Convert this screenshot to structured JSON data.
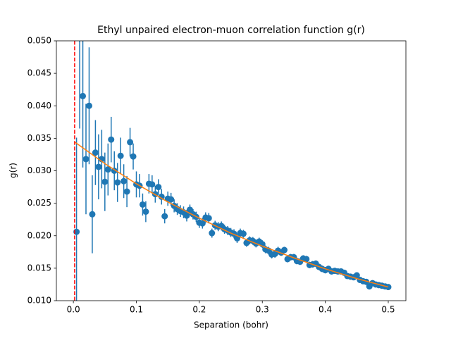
{
  "chart_data": {
    "type": "errorbar",
    "title": "Ethyl unpaired electron-muon correlation function g(r)",
    "x_label": "Separation (bohr)",
    "y_label": "g(r)",
    "xlim": [
      -0.027,
      0.528
    ],
    "ylim": [
      0.01,
      0.05
    ],
    "xticks": [
      {
        "value": 0,
        "label": "0.0"
      },
      {
        "value": 0.1,
        "label": "0.1"
      },
      {
        "value": 0.2,
        "label": "0.2"
      },
      {
        "value": 0.3,
        "label": "0.3"
      },
      {
        "value": 0.4,
        "label": "0.4"
      },
      {
        "value": 0.5,
        "label": "0.5"
      }
    ],
    "yticks": [
      {
        "value": 0.01,
        "label": "0.010"
      },
      {
        "value": 0.015,
        "label": "0.015"
      },
      {
        "value": 0.02,
        "label": "0.020"
      },
      {
        "value": 0.025,
        "label": "0.025"
      },
      {
        "value": 0.03,
        "label": "0.030"
      },
      {
        "value": 0.035,
        "label": "0.035"
      },
      {
        "value": 0.04,
        "label": "0.040"
      },
      {
        "value": 0.045,
        "label": "0.045"
      },
      {
        "value": 0.05,
        "label": "0.050"
      }
    ],
    "vline": {
      "x": 0.002,
      "color": "#ff0000"
    },
    "series": [
      {
        "kind": "errorbar",
        "color": "#1f77b4",
        "x": [
          0.005,
          0.01,
          0.015,
          0.02,
          0.025,
          0.03,
          0.035,
          0.04,
          0.045,
          0.05,
          0.055,
          0.06,
          0.065,
          0.07,
          0.075,
          0.08,
          0.085,
          0.09,
          0.095,
          0.1,
          0.105,
          0.11,
          0.115,
          0.12,
          0.125,
          0.13,
          0.135,
          0.14,
          0.145,
          0.15,
          0.155,
          0.16,
          0.165,
          0.17,
          0.175,
          0.18,
          0.185,
          0.19,
          0.195,
          0.2,
          0.205,
          0.21,
          0.215,
          0.22,
          0.225,
          0.23,
          0.235,
          0.24,
          0.245,
          0.25,
          0.255,
          0.26,
          0.265,
          0.27,
          0.275,
          0.28,
          0.285,
          0.29,
          0.295,
          0.3,
          0.305,
          0.31,
          0.315,
          0.32,
          0.325,
          0.33,
          0.335,
          0.34,
          0.345,
          0.35,
          0.355,
          0.36,
          0.365,
          0.37,
          0.375,
          0.38,
          0.385,
          0.39,
          0.395,
          0.4,
          0.405,
          0.41,
          0.415,
          0.42,
          0.425,
          0.43,
          0.435,
          0.44,
          0.445,
          0.45,
          0.455,
          0.46,
          0.465,
          0.47,
          0.475,
          0.48,
          0.485,
          0.49,
          0.495,
          0.5
        ],
        "values": [
          0.0206,
          0.0505,
          0.0415,
          0.0318,
          0.04,
          0.0233,
          0.0328,
          0.0306,
          0.0318,
          0.0283,
          0.0302,
          0.0348,
          0.03,
          0.0282,
          0.0323,
          0.0284,
          0.0268,
          0.0344,
          0.0322,
          0.0279,
          0.0277,
          0.0248,
          0.0237,
          0.028,
          0.0279,
          0.0264,
          0.0275,
          0.026,
          0.023,
          0.0257,
          0.0256,
          0.0246,
          0.0241,
          0.0238,
          0.0236,
          0.0231,
          0.024,
          0.0233,
          0.0229,
          0.022,
          0.0219,
          0.0228,
          0.0227,
          0.0204,
          0.0216,
          0.0214,
          0.0215,
          0.021,
          0.0208,
          0.0205,
          0.0203,
          0.0196,
          0.0204,
          0.0203,
          0.0189,
          0.0193,
          0.0192,
          0.0188,
          0.0191,
          0.0187,
          0.0179,
          0.0177,
          0.0171,
          0.0172,
          0.0177,
          0.0174,
          0.0178,
          0.0164,
          0.0167,
          0.0167,
          0.0161,
          0.016,
          0.0165,
          0.0164,
          0.0155,
          0.0156,
          0.0157,
          0.0152,
          0.0149,
          0.0147,
          0.0149,
          0.0145,
          0.0146,
          0.0145,
          0.0145,
          0.0143,
          0.0138,
          0.0137,
          0.0136,
          0.0139,
          0.0132,
          0.013,
          0.0129,
          0.0122,
          0.0127,
          0.0125,
          0.0124,
          0.0123,
          0.0122,
          0.0121
        ],
        "errors": [
          0.0145,
          0.014,
          0.011,
          0.0085,
          0.009,
          0.006,
          0.005,
          0.005,
          0.0045,
          0.0045,
          0.004,
          0.0035,
          0.003,
          0.003,
          0.0028,
          0.0026,
          0.0024,
          0.0022,
          0.002,
          0.002,
          0.0018,
          0.0017,
          0.0016,
          0.0015,
          0.0014,
          0.0013,
          0.0012,
          0.0012,
          0.0011,
          0.0011,
          0.001,
          0.001,
          0.0009,
          0.0009,
          0.0009,
          0.0009,
          0.0008,
          0.0008,
          0.0008,
          0.0008,
          0.0008,
          0.0008,
          0.0008,
          0.0007,
          0.0007,
          0.0007,
          0.0007,
          0.0007,
          0.0007,
          0.0007,
          0.0007,
          0.0007,
          0.0007,
          0.0006,
          0.0006,
          0.0006,
          0.0006,
          0.0006,
          0.0006,
          0.0006,
          0.0006,
          0.0006,
          0.0006,
          0.0006,
          0.0006,
          0.0005,
          0.0005,
          0.0005,
          0.0005,
          0.0005,
          0.0005,
          0.0005,
          0.0005,
          0.0005,
          0.0005,
          0.0005,
          0.0005,
          0.0005,
          0.0005,
          0.0005,
          0.0004,
          0.0004,
          0.0004,
          0.0004,
          0.0004,
          0.0004,
          0.0004,
          0.0004,
          0.0004,
          0.0004,
          0.0004,
          0.0004,
          0.0004,
          0.0004,
          0.0004,
          0.0003,
          0.0003,
          0.0003,
          0.0003,
          0.0003
        ]
      },
      {
        "kind": "line",
        "color": "#ff7f0e",
        "x": [
          0.0025,
          0.05,
          0.1,
          0.15,
          0.2,
          0.25,
          0.3,
          0.35,
          0.4,
          0.45,
          0.5
        ],
        "values": [
          0.0344,
          0.0311,
          0.028,
          0.0252,
          0.0227,
          0.0204,
          0.0184,
          0.0166,
          0.0149,
          0.0134,
          0.0121
        ]
      }
    ]
  }
}
